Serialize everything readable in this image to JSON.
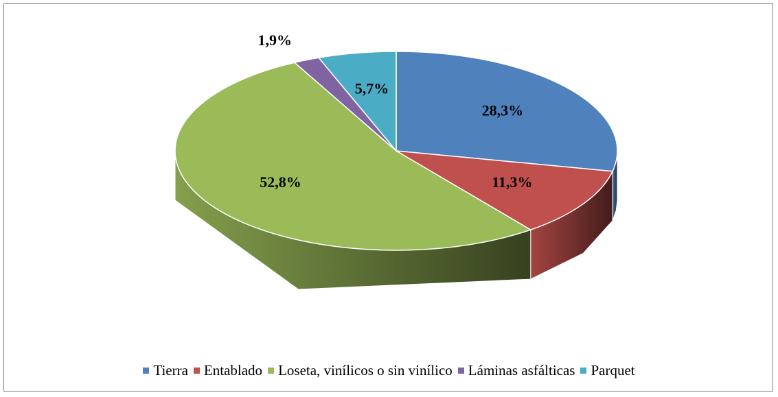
{
  "chart_data": {
    "type": "pie",
    "categories": [
      "Tierra",
      "Entablado",
      "Loseta, vinílicos o sin vinílico",
      "Láminas asfálticas",
      "Parquet"
    ],
    "values": [
      28.3,
      11.3,
      52.8,
      1.9,
      5.7
    ],
    "value_labels": [
      "28,3%",
      "11,3%",
      "52,8%",
      "1,9%",
      "5,7%"
    ],
    "colors": [
      "#4f81bd",
      "#c0504d",
      "#9bbb59",
      "#8064a2",
      "#4bacc6"
    ],
    "legend": "bottom"
  }
}
